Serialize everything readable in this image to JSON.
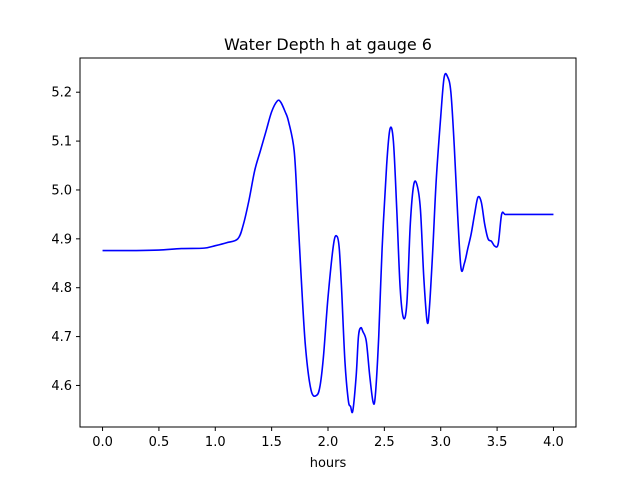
{
  "chart_data": {
    "type": "line",
    "title": "Water Depth h at gauge 6",
    "xlabel": "hours",
    "ylabel": "",
    "xlim": [
      -0.2,
      4.2
    ],
    "ylim": [
      4.515,
      5.27
    ],
    "xticks": [
      0.0,
      0.5,
      1.0,
      1.5,
      2.0,
      2.5,
      3.0,
      3.5,
      4.0
    ],
    "xtick_labels": [
      "0.0",
      "0.5",
      "1.0",
      "1.5",
      "2.0",
      "2.5",
      "3.0",
      "3.5",
      "4.0"
    ],
    "yticks": [
      4.6,
      4.7,
      4.8,
      4.9,
      5.0,
      5.1,
      5.2
    ],
    "ytick_labels": [
      "4.6",
      "4.7",
      "4.8",
      "4.9",
      "5.0",
      "5.1",
      "5.2"
    ],
    "grid": false,
    "series": [
      {
        "color": "#0000ff",
        "x": [
          0.0,
          0.3,
          0.5,
          0.7,
          0.9,
          1.0,
          1.1,
          1.2,
          1.25,
          1.3,
          1.35,
          1.4,
          1.45,
          1.5,
          1.55,
          1.58,
          1.62,
          1.65,
          1.7,
          1.73,
          1.76,
          1.8,
          1.85,
          1.9,
          1.93,
          1.96,
          2.0,
          2.05,
          2.08,
          2.1,
          2.12,
          2.15,
          2.18,
          2.2,
          2.22,
          2.25,
          2.27,
          2.29,
          2.31,
          2.34,
          2.37,
          2.4,
          2.42,
          2.45,
          2.48,
          2.52,
          2.55,
          2.58,
          2.61,
          2.64,
          2.67,
          2.7,
          2.73,
          2.76,
          2.79,
          2.82,
          2.85,
          2.88,
          2.9,
          2.93,
          2.96,
          3.0,
          3.03,
          3.06,
          3.09,
          3.12,
          3.15,
          3.18,
          3.21,
          3.24,
          3.27,
          3.3,
          3.33,
          3.36,
          3.39,
          3.42,
          3.45,
          3.48,
          3.51,
          3.54,
          3.57,
          3.6,
          3.63,
          3.66,
          3.7,
          3.73,
          3.77,
          3.8,
          3.83,
          3.86,
          3.9,
          3.93,
          3.96,
          4.0
        ],
        "y": [
          4.876,
          4.876,
          4.877,
          4.88,
          4.881,
          4.886,
          4.892,
          4.9,
          4.93,
          4.98,
          5.04,
          5.08,
          5.12,
          5.16,
          5.182,
          5.18,
          5.16,
          5.14,
          5.08,
          4.96,
          4.83,
          4.68,
          4.59,
          4.58,
          4.6,
          4.66,
          4.78,
          4.89,
          4.905,
          4.88,
          4.8,
          4.65,
          4.57,
          4.557,
          4.548,
          4.62,
          4.7,
          4.718,
          4.71,
          4.69,
          4.62,
          4.566,
          4.58,
          4.7,
          4.88,
          5.05,
          5.125,
          5.1,
          4.96,
          4.8,
          4.738,
          4.77,
          4.93,
          5.01,
          5.01,
          4.96,
          4.82,
          4.73,
          4.76,
          4.88,
          5.02,
          5.15,
          5.23,
          5.232,
          5.2,
          5.09,
          4.95,
          4.84,
          4.85,
          4.88,
          4.91,
          4.95,
          4.985,
          4.975,
          4.93,
          4.9,
          4.895,
          4.885,
          4.89,
          4.95,
          4.95,
          4.95,
          4.95,
          4.95,
          4.95,
          4.95,
          4.95,
          4.95,
          4.95,
          4.95,
          4.95,
          4.95,
          4.95,
          4.95
        ]
      }
    ]
  }
}
